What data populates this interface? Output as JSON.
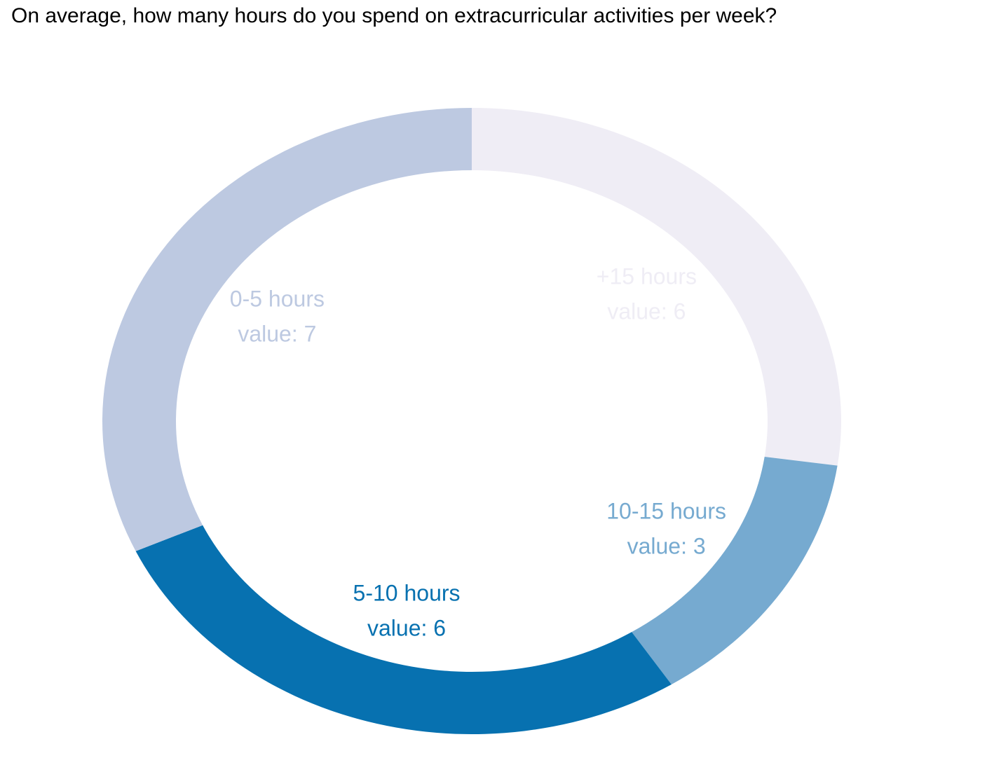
{
  "chart_data": {
    "type": "pie",
    "subtype": "donut",
    "title": "On average, how many hours do you spend on extracurricular activities per week?",
    "value_prefix": "value: ",
    "categories": [
      "+15 hours",
      "10-15 hours",
      "5-10 hours",
      "0-5 hours"
    ],
    "values": [
      6,
      3,
      6,
      7
    ],
    "colors": [
      "#EFEDF5",
      "#76AAD0",
      "#0771B0",
      "#BDC9E1"
    ],
    "legend": "none"
  }
}
